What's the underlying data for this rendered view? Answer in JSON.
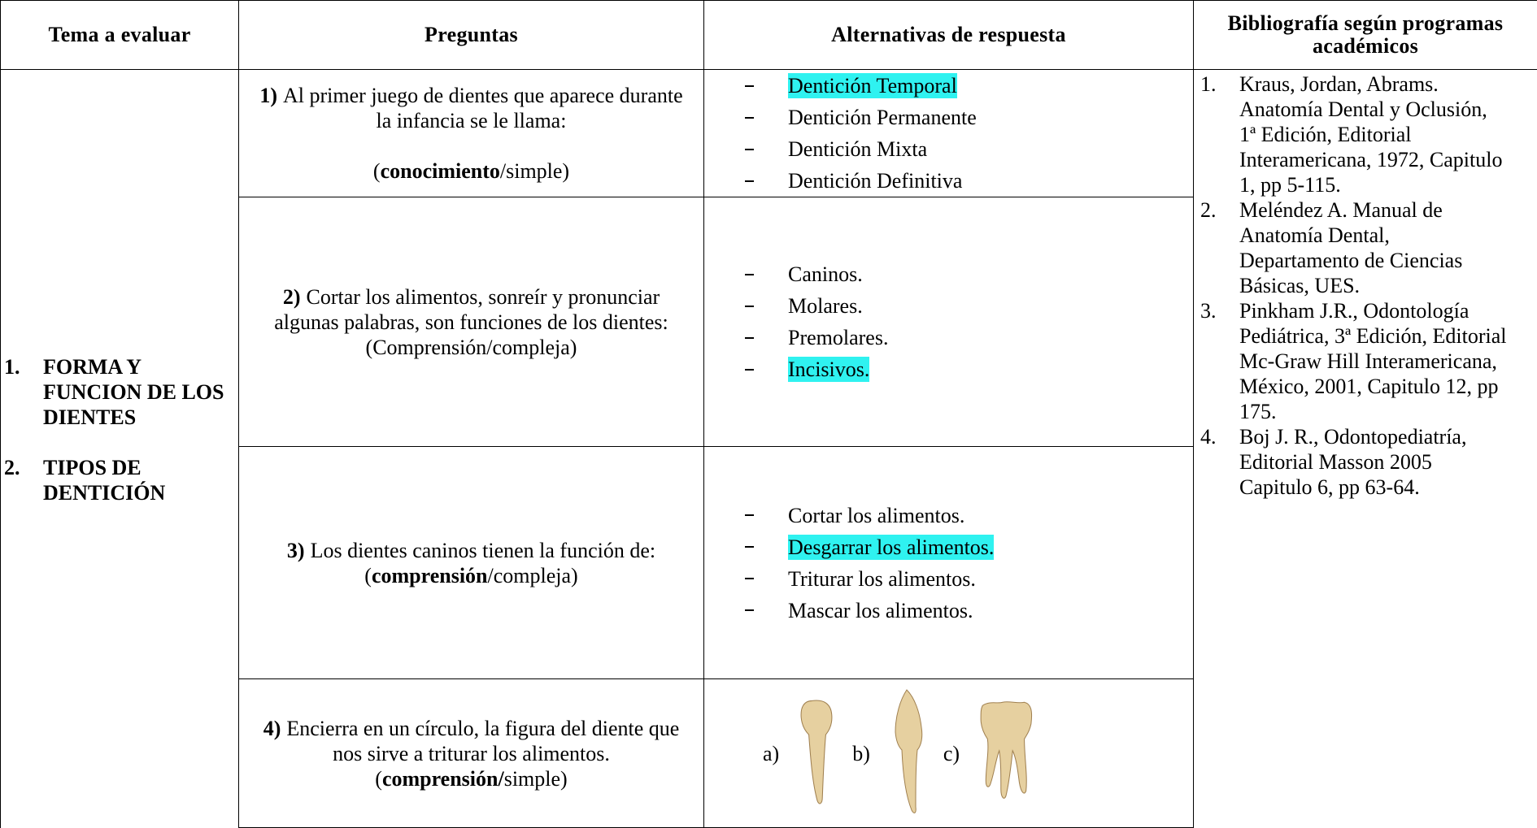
{
  "header": [
    "Tema a evaluar",
    "Preguntas",
    "Alternativas de respuesta",
    "Bibliografía según programas académicos"
  ],
  "topics": [
    {
      "number": "1.",
      "text": "FORMA Y FUNCION DE LOS DIENTES"
    },
    {
      "number": "2.",
      "text": "TIPOS DE DENTICIÓN"
    }
  ],
  "questions": [
    {
      "number": "1)",
      "text": "Al primer juego de dientes que aparece durante la infancia se le llama:",
      "level": [
        {
          "text": "(",
          "bold": false
        },
        {
          "text": "conocimiento",
          "bold": true
        },
        {
          "text": "/simple)",
          "bold": false
        }
      ],
      "options": [
        {
          "text": "Dentición Temporal",
          "highlight": true
        },
        {
          "text": "Dentición Permanente",
          "highlight": false
        },
        {
          "text": "Dentición Mixta",
          "highlight": false
        },
        {
          "text": "Dentición Definitiva",
          "highlight": false
        }
      ]
    },
    {
      "number": "2)",
      "text": "Cortar los alimentos, sonreír y pronunciar algunas palabras, son funciones de los dientes:",
      "level": [
        {
          "text": "(Comprensión/compleja)",
          "bold": false
        }
      ],
      "options": [
        {
          "text": "Caninos.",
          "highlight": false
        },
        {
          "text": "Molares.",
          "highlight": false
        },
        {
          "text": "Premolares.",
          "highlight": false
        },
        {
          "text": "Incisivos.",
          "highlight": true
        }
      ]
    },
    {
      "number": "3)",
      "text": "Los dientes caninos tienen la función de:",
      "level": [
        {
          "text": "(",
          "bold": false
        },
        {
          "text": "comprensión",
          "bold": true
        },
        {
          "text": "/compleja)",
          "bold": false
        }
      ],
      "options": [
        {
          "text": "Cortar los alimentos.",
          "highlight": false
        },
        {
          "text": "Desgarrar los alimentos.",
          "highlight": true
        },
        {
          "text": "Triturar los alimentos.",
          "highlight": false
        },
        {
          "text": "Mascar los alimentos.",
          "highlight": false
        }
      ]
    },
    {
      "number": "4)",
      "text": "Encierra en un círculo, la figura del diente que nos sirve a triturar los alimentos.",
      "level": [
        {
          "text": "(",
          "bold": false
        },
        {
          "text": "comprensión/",
          "bold": true
        },
        {
          "text": "simple)",
          "bold": false
        }
      ],
      "figures": [
        {
          "label": "a)"
        },
        {
          "label": "b)"
        },
        {
          "label": "c)"
        }
      ]
    }
  ],
  "bibliography": [
    {
      "number": "1.",
      "text": "Kraus, Jordan, Abrams. Anatomía Dental y Oclusión, 1ª Edición, Editorial Interamericana, 1972, Capitulo 1, pp 5-115."
    },
    {
      "number": "2.",
      "text": "Meléndez A. Manual de Anatomía Dental, Departamento de Ciencias Básicas, UES."
    },
    {
      "number": "3.",
      "text": "Pinkham J.R., Odontología Pediátrica, 3ª Edición, Editorial Mc-Graw Hill Interamericana, México, 2001, Capitulo 12, pp 175."
    },
    {
      "number": "4.",
      "text": "Boj J. R., Odontopediatría, Editorial Masson 2005 Capitulo 6, pp 63-64."
    }
  ]
}
